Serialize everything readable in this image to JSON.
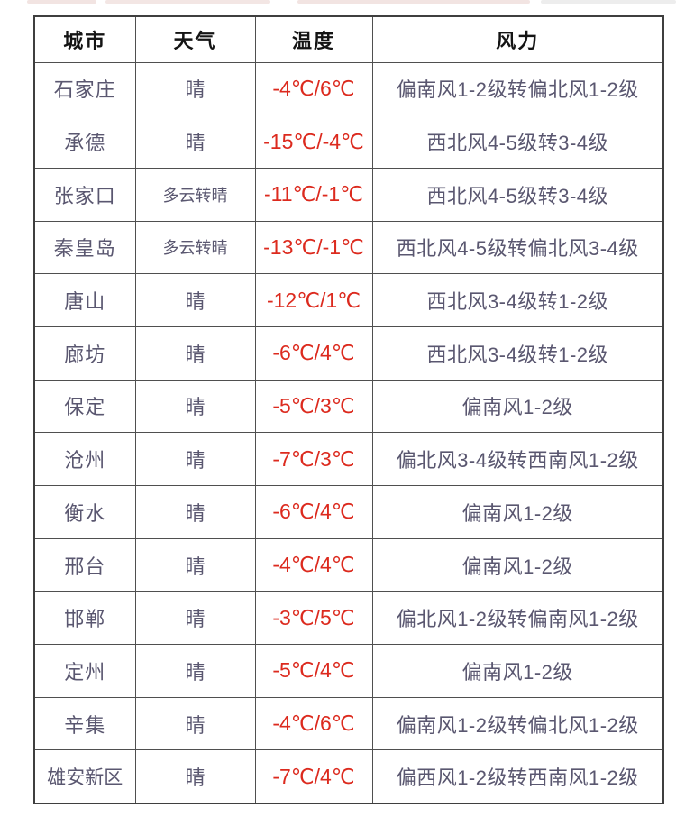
{
  "table": {
    "headers": [
      "城市",
      "天气",
      "温度",
      "风力"
    ],
    "rows": [
      {
        "city": "石家庄",
        "weather": "晴",
        "temp": "-4℃/6℃",
        "wind": "偏南风1-2级转偏北风1-2级"
      },
      {
        "city": "承德",
        "weather": "晴",
        "temp": "-15℃/-4℃",
        "wind": "西北风4-5级转3-4级"
      },
      {
        "city": "张家口",
        "weather": "多云转晴",
        "temp": "-11℃/-1℃",
        "wind": "西北风4-5级转3-4级"
      },
      {
        "city": "秦皇岛",
        "weather": "多云转晴",
        "temp": "-13℃/-1℃",
        "wind": "西北风4-5级转偏北风3-4级"
      },
      {
        "city": "唐山",
        "weather": "晴",
        "temp": "-12℃/1℃",
        "wind": "西北风3-4级转1-2级"
      },
      {
        "city": "廊坊",
        "weather": "晴",
        "temp": "-6℃/4℃",
        "wind": "西北风3-4级转1-2级"
      },
      {
        "city": "保定",
        "weather": "晴",
        "temp": "-5℃/3℃",
        "wind": "偏南风1-2级"
      },
      {
        "city": "沧州",
        "weather": "晴",
        "temp": "-7℃/3℃",
        "wind": "偏北风3-4级转西南风1-2级"
      },
      {
        "city": "衡水",
        "weather": "晴",
        "temp": "-6℃/4℃",
        "wind": "偏南风1-2级"
      },
      {
        "city": "邢台",
        "weather": "晴",
        "temp": "-4℃/4℃",
        "wind": "偏南风1-2级"
      },
      {
        "city": "邯郸",
        "weather": "晴",
        "temp": "-3℃/5℃",
        "wind": "偏北风1-2级转偏南风1-2级"
      },
      {
        "city": "定州",
        "weather": "晴",
        "temp": "-5℃/4℃",
        "wind": "偏南风1-2级"
      },
      {
        "city": "辛集",
        "weather": "晴",
        "temp": "-4℃/6℃",
        "wind": "偏南风1-2级转偏北风1-2级"
      },
      {
        "city": "雄安新区",
        "weather": "晴",
        "temp": "-7℃/4℃",
        "wind": "偏西风1-2级转西南风1-2级"
      }
    ]
  },
  "colors": {
    "header_text": "#141414",
    "body_text": "#5a5770",
    "temperature_text": "#dc2a1e",
    "border": "#4f4f4f",
    "background": "#ffffff"
  }
}
